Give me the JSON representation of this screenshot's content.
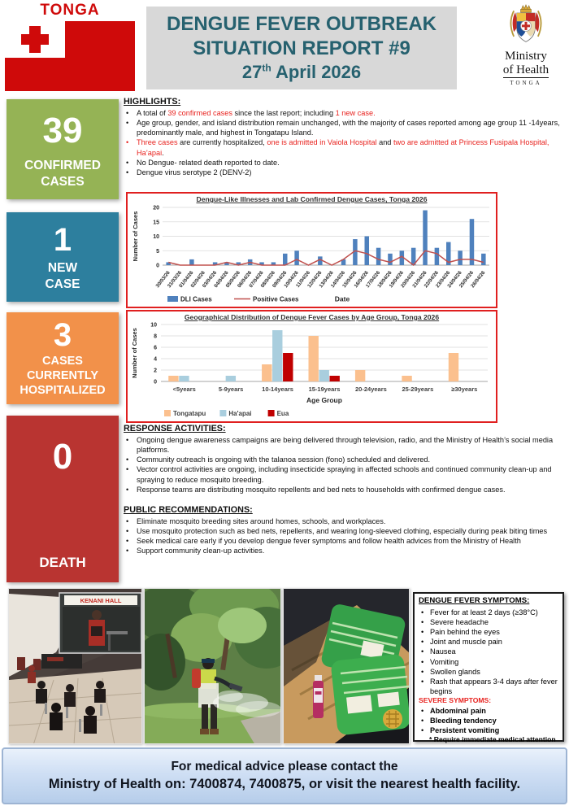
{
  "colors": {
    "flag_red": "#cf0a0a",
    "title_teal": "#26616f",
    "title_bg": "#d8d8d8",
    "accent_text_red": "#e8231f",
    "chart_border_red": "#e02020",
    "stat_green": "#95b355",
    "stat_teal": "#2d7f9e",
    "stat_orange": "#f2914a",
    "stat_red": "#b93431",
    "dli_bar_blue": "#4f81bd",
    "positive_line_red": "#c0504d",
    "tongatapu_peach": "#fbc08e",
    "haapai_blue": "#a9cede",
    "eua_red": "#c00000",
    "footer_blue": "#cfdff4"
  },
  "header": {
    "flag_label": "TONGA",
    "title_line1": "DENGUE FEVER OUTBREAK",
    "title_line2": "SITUATION REPORT #9",
    "title_day": "27",
    "title_day_suffix": "th",
    "title_date_rest": " April 2026",
    "ministry_line1": "Ministry",
    "ministry_line2": "of Health",
    "ministry_line3": "TONGA"
  },
  "stats": [
    {
      "value": "39",
      "lines": [
        "CONFIRMED",
        "CASES"
      ],
      "color": "#95b355"
    },
    {
      "value": "1",
      "lines": [
        "NEW",
        "CASE"
      ],
      "color": "#2d7f9e"
    },
    {
      "value": "3",
      "lines": [
        "CASES",
        "CURRENTLY",
        "HOSPITALIZED"
      ],
      "color": "#f2914a"
    },
    {
      "value": "0",
      "lines": [
        "DEATH"
      ],
      "color": "#b93431"
    }
  ],
  "sections": {
    "highlights": {
      "heading": "HIGHLIGHTS:",
      "items": [
        {
          "segments": [
            {
              "t": "A total of "
            },
            {
              "t": "39 confirmed cases",
              "c": "#e8231f"
            },
            {
              "t": " since the last report; including "
            },
            {
              "t": "1 new case.",
              "c": "#e8231f"
            }
          ]
        },
        {
          "segments": [
            {
              "t": "Age group, gender, and island distribution remain unchanged, with the majority of cases reported among age group 11 -14years, predominantly male, and highest in Tongatapu Island."
            }
          ]
        },
        {
          "marker": "#e8231f",
          "segments": [
            {
              "t": "Three cases",
              "c": "#e8231f"
            },
            {
              "t": " are currently hospitalized, "
            },
            {
              "t": "one is admitted in Vaiola Hospital",
              "c": "#e8231f"
            },
            {
              "t": " and "
            },
            {
              "t": "two are admitted at Princess Fusipala Hospital, Ha’apai",
              "c": "#e8231f"
            },
            {
              "t": "."
            }
          ]
        },
        {
          "segments": [
            {
              "t": "No Dengue- related death reported to date."
            }
          ]
        },
        {
          "segments": [
            {
              "t": "Dengue virus serotype 2 (DENV-2)"
            }
          ]
        }
      ]
    },
    "response": {
      "heading": "RESPONSE ACTIVITIES:",
      "items": [
        "Ongoing dengue awareness campaigns are being delivered through television, radio, and the Ministry of Health’s social media platforms.",
        "Community outreach is ongoing with the talanoa session (fono) scheduled and delivered.",
        "Vector control activities are ongoing, including insecticide spraying in affected schools and continued community clean-up and spraying to reduce mosquito breeding.",
        "Response teams are distributing mosquito repellents and bed nets to households with confirmed dengue cases."
      ]
    },
    "public": {
      "heading": "PUBLIC RECOMMENDATIONS:",
      "items": [
        "Eliminate mosquito breeding sites around homes, schools, and workplaces.",
        "Use mosquito protection such as bed nets, repellents, and wearing long-sleeved clothing, especially during peak biting times",
        "Seek medical care early if you develop dengue fever symptoms and follow health advices from the Ministry of Health",
        "Support community clean-up activities."
      ]
    }
  },
  "chart_data": [
    {
      "type": "bar",
      "subtype": "bar+line combo",
      "title": "Dengue-Like Illnesses and Lab Confirmed Dengue Cases, Tonga 2026",
      "xlabel": "Date",
      "ylabel": "Number of Cases",
      "ylim": [
        0,
        20
      ],
      "yticks": [
        0,
        5,
        10,
        15,
        20
      ],
      "grid": "horizontal",
      "legend_position": "bottom-left",
      "x": [
        "30/03/26",
        "31/03/26",
        "01/04/26",
        "02/04/26",
        "03/04/26",
        "04/04/26",
        "05/04/26",
        "06/04/26",
        "07/04/26",
        "08/04/26",
        "09/04/26",
        "10/04/26",
        "11/04/26",
        "12/04/26",
        "13/04/26",
        "14/04/26",
        "15/04/26",
        "16/04/26",
        "17/04/26",
        "18/04/26",
        "19/04/26",
        "20/04/26",
        "21/04/26",
        "22/04/26",
        "23/04/26",
        "24/04/26",
        "25/04/26",
        "26/04/26"
      ],
      "series": [
        {
          "name": "DLI Cases",
          "type": "bar",
          "color": "#4f81bd",
          "values": [
            1,
            0,
            2,
            0,
            1,
            1,
            1,
            2,
            1,
            1,
            4,
            5,
            0,
            3,
            0,
            2,
            9,
            10,
            6,
            4,
            5,
            6,
            19,
            6,
            8,
            5,
            16,
            4
          ]
        },
        {
          "name": "Positive Cases",
          "type": "line",
          "color": "#c0504d",
          "values": [
            1,
            0,
            0,
            0,
            0,
            1,
            0,
            1,
            0,
            0,
            0,
            2,
            0,
            2,
            0,
            2,
            5,
            4,
            2,
            1,
            3,
            0,
            5,
            4,
            1,
            2,
            2,
            1
          ]
        }
      ]
    },
    {
      "type": "bar",
      "subtype": "grouped bar",
      "title": "Geographical Distribution of Dengue Fever Cases by Age Group, Tonga 2026",
      "xlabel": "Age Group",
      "ylabel": "Number of Cases",
      "ylim": [
        0,
        10
      ],
      "yticks": [
        0,
        2,
        4,
        6,
        8,
        10
      ],
      "grid": "horizontal",
      "legend_position": "bottom-left",
      "categories": [
        "<5years",
        "5-9years",
        "10-14years",
        "15-19years",
        "20-24years",
        "25-29years",
        "≥30years"
      ],
      "series": [
        {
          "name": "Tongatapu",
          "color": "#fbc08e",
          "values": [
            1,
            0,
            3,
            8,
            2,
            1,
            5
          ]
        },
        {
          "name": "Ha'apai",
          "color": "#a9cede",
          "values": [
            1,
            1,
            9,
            2,
            0,
            0,
            0
          ]
        },
        {
          "name": "Eua",
          "color": "#c00000",
          "values": [
            0,
            0,
            5,
            1,
            0,
            0,
            0
          ]
        }
      ]
    }
  ],
  "photos": [
    {
      "name": "community-talanoa-session",
      "sign_text": "KENANI HALL"
    },
    {
      "name": "insecticide-spraying"
    },
    {
      "name": "mosquito-net-distribution"
    }
  ],
  "symptoms_box": {
    "heading": "DENGUE FEVER SYMPTOMS:",
    "items": [
      "Fever for at least 2 days (≥38°C)",
      "Severe headache",
      "Pain behind the eyes",
      "Joint and muscle pain",
      "Nausea",
      "Vomiting",
      "Swollen glands",
      "Rash that appears 3-4 days after fever begins"
    ],
    "severe_heading": "SEVERE SYMPTOMS:",
    "severe_heading_color": "#e8231f",
    "severe_items": [
      "Abdominal pain",
      "Bleeding tendency",
      "Persistent vomiting"
    ],
    "note": "* Require immediate medical attention"
  },
  "footer": {
    "line1": "For medical advice please contact the",
    "line2": "Ministry of Health on: 7400874, 7400875, or visit the nearest health facility."
  }
}
